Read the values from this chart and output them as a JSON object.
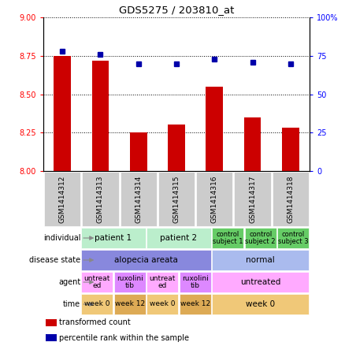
{
  "title": "GDS5275 / 203810_at",
  "samples": [
    "GSM1414312",
    "GSM1414313",
    "GSM1414314",
    "GSM1414315",
    "GSM1414316",
    "GSM1414317",
    "GSM1414318"
  ],
  "bar_values": [
    8.75,
    8.72,
    8.25,
    8.3,
    8.55,
    8.35,
    8.28
  ],
  "dot_values": [
    78,
    76,
    70,
    70,
    73,
    71,
    70
  ],
  "ylim_left": [
    8.0,
    9.0
  ],
  "ylim_right": [
    0,
    100
  ],
  "yticks_left": [
    8.0,
    8.25,
    8.5,
    8.75,
    9.0
  ],
  "yticks_right": [
    0,
    25,
    50,
    75,
    100
  ],
  "bar_color": "#cc0000",
  "dot_color": "#0000aa",
  "annotation_rows": [
    {
      "label": "individual",
      "cells": [
        {
          "text": "patient 1",
          "span": 2,
          "color": "#bbeecc",
          "fontsize": 7.5
        },
        {
          "text": "patient 2",
          "span": 2,
          "color": "#bbeecc",
          "fontsize": 7.5
        },
        {
          "text": "control\nsubject 1",
          "span": 1,
          "color": "#66cc66",
          "fontsize": 6
        },
        {
          "text": "control\nsubject 2",
          "span": 1,
          "color": "#66cc66",
          "fontsize": 6
        },
        {
          "text": "control\nsubject 3",
          "span": 1,
          "color": "#66cc66",
          "fontsize": 6
        }
      ]
    },
    {
      "label": "disease state",
      "cells": [
        {
          "text": "alopecia areata",
          "span": 4,
          "color": "#8888dd",
          "fontsize": 7.5
        },
        {
          "text": "normal",
          "span": 3,
          "color": "#aabbee",
          "fontsize": 7.5
        }
      ]
    },
    {
      "label": "agent",
      "cells": [
        {
          "text": "untreat\ned",
          "span": 1,
          "color": "#ffaaff",
          "fontsize": 6.5
        },
        {
          "text": "ruxolini\ntib",
          "span": 1,
          "color": "#dd88ff",
          "fontsize": 6.5
        },
        {
          "text": "untreat\ned",
          "span": 1,
          "color": "#ffaaff",
          "fontsize": 6.5
        },
        {
          "text": "ruxolini\ntib",
          "span": 1,
          "color": "#dd88ff",
          "fontsize": 6.5
        },
        {
          "text": "untreated",
          "span": 3,
          "color": "#ffaaff",
          "fontsize": 7.5
        }
      ]
    },
    {
      "label": "time",
      "cells": [
        {
          "text": "week 0",
          "span": 1,
          "color": "#f0c878",
          "fontsize": 6.5
        },
        {
          "text": "week 12",
          "span": 1,
          "color": "#ddaa55",
          "fontsize": 6.5
        },
        {
          "text": "week 0",
          "span": 1,
          "color": "#f0c878",
          "fontsize": 6.5
        },
        {
          "text": "week 12",
          "span": 1,
          "color": "#ddaa55",
          "fontsize": 6.5
        },
        {
          "text": "week 0",
          "span": 3,
          "color": "#f0c878",
          "fontsize": 7.5
        }
      ]
    }
  ],
  "legend": [
    {
      "color": "#cc0000",
      "label": "transformed count"
    },
    {
      "color": "#0000aa",
      "label": "percentile rank within the sample"
    }
  ],
  "sample_box_color": "#cccccc",
  "arrow_color": "#888888"
}
